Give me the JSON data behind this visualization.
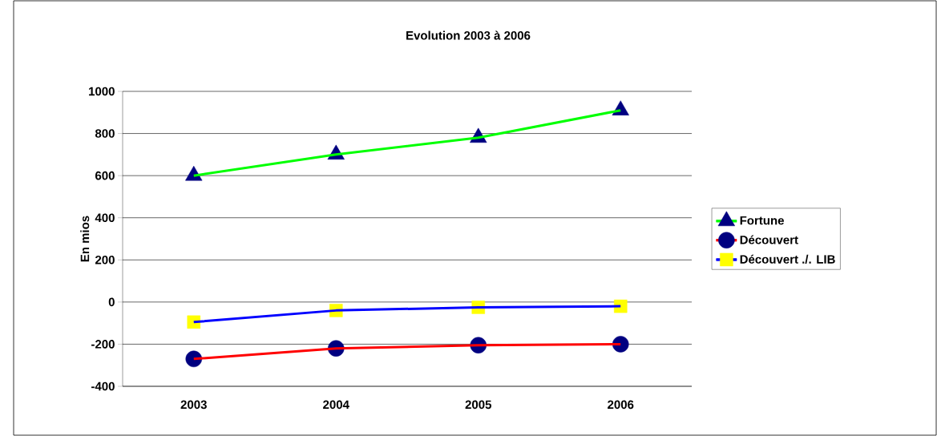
{
  "chart_data": {
    "type": "line",
    "title": "Evolution 2003 à 2006",
    "ylabel": "En mios",
    "categories": [
      "2003",
      "2004",
      "2005",
      "2006"
    ],
    "series": [
      {
        "name": "Fortune",
        "color": "#00ff00",
        "marker": "triangle",
        "values": [
          600,
          700,
          780,
          910
        ]
      },
      {
        "name": "Découvert",
        "color": "#ff0000",
        "marker": "circle",
        "values": [
          -270,
          -220,
          -205,
          -200
        ]
      },
      {
        "name": "Découvert ./. LIB",
        "color": "#0000ff",
        "marker": "square",
        "values": [
          -95,
          -40,
          -25,
          -20
        ]
      }
    ],
    "ylim": [
      -400,
      1000
    ],
    "yticks": [
      -400,
      -200,
      0,
      200,
      400,
      600,
      800,
      1000
    ],
    "grid": "y",
    "legend": "right"
  }
}
